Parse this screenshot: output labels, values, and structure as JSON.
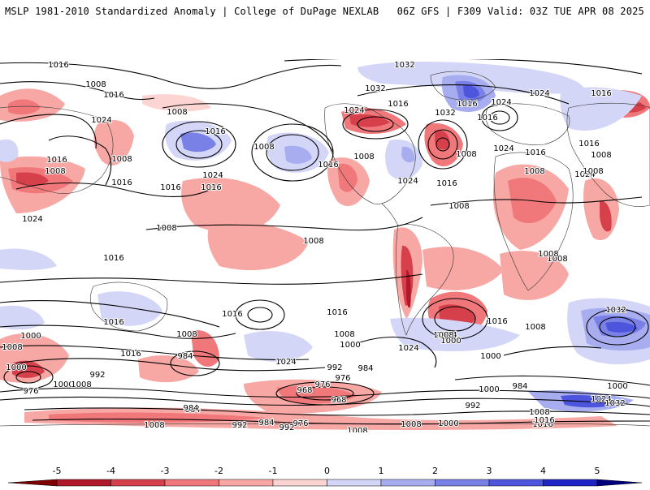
{
  "header": {
    "title_left": "MSLP 1981-2010 Standardized Anomaly | College of DuPage NEXLAB",
    "title_right": "06Z GFS | F309 Valid: 03Z TUE APR 08 2025"
  },
  "colorbar": {
    "ticks": [
      "-5",
      "-4",
      "-3",
      "-2",
      "-1",
      "0",
      "1",
      "2",
      "3",
      "4",
      "5"
    ],
    "colors": [
      "#b2182b",
      "#d6404a",
      "#f0777a",
      "#f8a8a4",
      "#fcd5d2",
      "#ffffff",
      "#d3d6f7",
      "#a8adf0",
      "#7a81e6",
      "#4d55dc",
      "#1d24c8"
    ]
  },
  "isobar_labels": {
    "north": [
      "1016",
      "1008",
      "1016",
      "1024",
      "1016",
      "1008",
      "1008",
      "1016",
      "1008",
      "1024",
      "1016",
      "1016",
      "1008",
      "1024",
      "1016",
      "1016",
      "1008",
      "1032",
      "1032",
      "1024",
      "1024",
      "1016",
      "1008",
      "1008",
      "1016",
      "1024",
      "1016",
      "1032",
      "1024",
      "1008",
      "1016",
      "1024",
      "1008",
      "1008",
      "1016",
      "1016",
      "1024",
      "1016"
    ],
    "tropics": [
      "1008",
      "1008",
      "1008",
      "1016",
      "1008"
    ],
    "south": [
      "1016",
      "1016",
      "1016",
      "1008",
      "1016",
      "1024",
      "1024",
      "1032",
      "1008",
      "1000",
      "1008",
      "1016",
      "1000",
      "1024",
      "1008",
      "1000",
      "1000",
      "1008",
      "1000",
      "984",
      "992",
      "976",
      "984",
      "976",
      "968",
      "968",
      "976",
      "984",
      "992",
      "984",
      "1000",
      "1000",
      "1008",
      "1024",
      "1032",
      "1008",
      "1016",
      "1008",
      "992",
      "984",
      "976",
      "984",
      "992",
      "1000",
      "1008",
      "1000",
      "992",
      "1008",
      "1016"
    ]
  }
}
